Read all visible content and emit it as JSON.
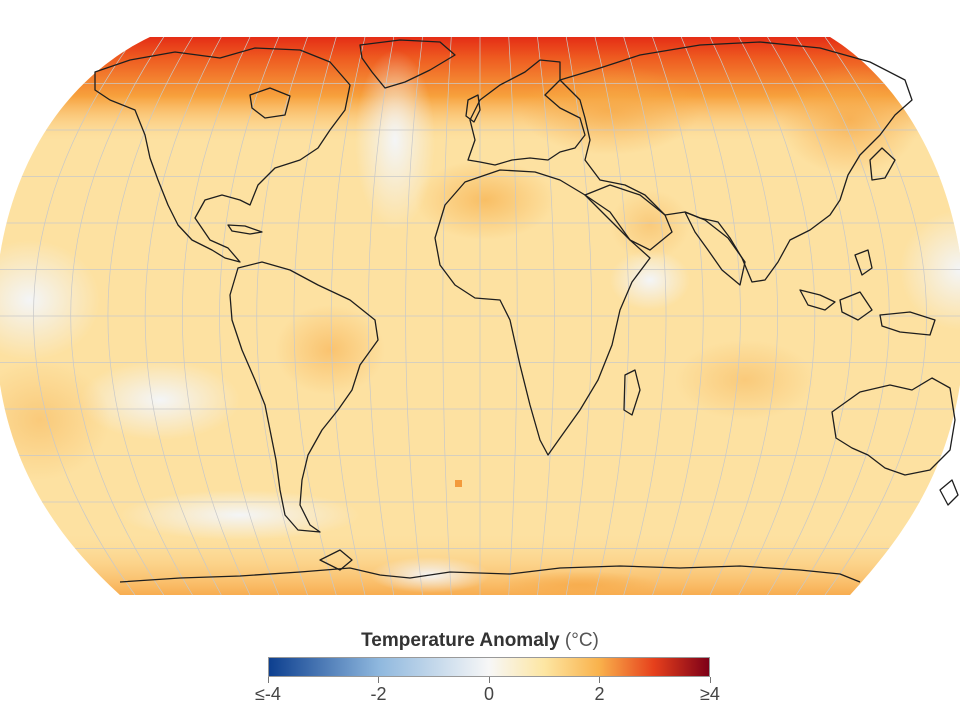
{
  "map": {
    "projection": "robinson",
    "outline_color": "#1e1e1e",
    "graticule_color": "#c8c8c8",
    "background": "#ffffff"
  },
  "legend": {
    "title": "Temperature Anomaly",
    "unit": "(°C)",
    "stops": [
      {
        "value": -4,
        "color": "#0d3f8f"
      },
      {
        "value": -2,
        "color": "#8fb8de"
      },
      {
        "value": 0,
        "color": "#f7f7f7"
      },
      {
        "value": 1,
        "color": "#fde6a3"
      },
      {
        "value": 2,
        "color": "#f9b24c"
      },
      {
        "value": 3,
        "color": "#e6401c"
      },
      {
        "value": 4,
        "color": "#7d0018"
      }
    ],
    "ticks": [
      {
        "value": -4,
        "label": "≤-4"
      },
      {
        "value": -2,
        "label": "-2"
      },
      {
        "value": 0,
        "label": "0"
      },
      {
        "value": 2,
        "label": "2"
      },
      {
        "value": 4,
        "label": "≥4"
      }
    ]
  }
}
